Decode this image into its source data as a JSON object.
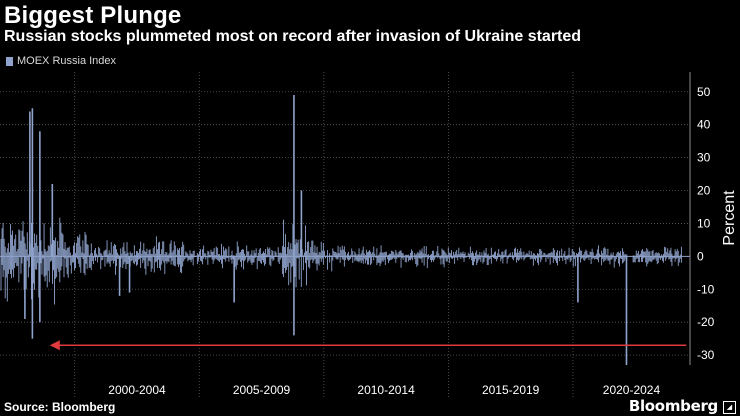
{
  "header": {
    "title": "Biggest Plunge",
    "subtitle": "Russian stocks plummeted most on record after invasion of Ukraine started"
  },
  "footer": {
    "source": "Source: Bloomberg",
    "brand": "Bloomberg"
  },
  "colors": {
    "background": "#000000",
    "series": "#8fa3cc",
    "arrow": "#e0393e",
    "grid": "#5a5a5a",
    "text": "#ffffff"
  },
  "chart_data": {
    "type": "bar",
    "title": "Biggest Plunge",
    "subtitle": "Russian stocks plummeted most on record after invasion of Ukraine started",
    "xlabel": "",
    "ylabel": "Percent",
    "ylim": [
      -33,
      56
    ],
    "yticks": [
      50,
      40,
      30,
      20,
      10,
      0,
      -10,
      -20,
      -30
    ],
    "x_range_years": [
      1997.0,
      2024.7
    ],
    "x_periods": [
      {
        "label": "2000-2004",
        "start": 2000.0,
        "end": 2005.0
      },
      {
        "label": "2005-2009",
        "start": 2005.0,
        "end": 2010.0
      },
      {
        "label": "2010-2014",
        "start": 2010.0,
        "end": 2015.0
      },
      {
        "label": "2015-2019",
        "start": 2015.0,
        "end": 2020.0
      },
      {
        "label": "2020-2024",
        "start": 2020.0,
        "end": 2024.7
      }
    ],
    "legend": [
      {
        "name": "MOEX Russia Index",
        "color": "#8fa3cc"
      }
    ],
    "notable_points": [
      {
        "year": 1998.2,
        "value": 44
      },
      {
        "year": 1998.3,
        "value": 45
      },
      {
        "year": 1998.3,
        "value": -25
      },
      {
        "year": 1998.6,
        "value": 38
      },
      {
        "year": 1998.6,
        "value": -20
      },
      {
        "year": 1998.0,
        "value": -19
      },
      {
        "year": 1999.1,
        "value": 22
      },
      {
        "year": 2001.8,
        "value": -12
      },
      {
        "year": 2008.8,
        "value": 49
      },
      {
        "year": 2008.8,
        "value": -24
      },
      {
        "year": 2009.1,
        "value": 20
      },
      {
        "year": 2006.4,
        "value": -14
      },
      {
        "year": 2002.2,
        "value": -11
      },
      {
        "year": 2022.15,
        "value": -33
      },
      {
        "year": 2020.2,
        "value": -14
      }
    ],
    "annotation": {
      "type": "arrow",
      "from_year": 2024.55,
      "to_year": 1999.0,
      "value": -27,
      "color": "#e0393e",
      "description": "Arrow pointing from the 2022 plunge back to the start of the record"
    },
    "series": [
      {
        "name": "MOEX Russia Index",
        "values": "daily percent changes (dense series)"
      }
    ]
  }
}
